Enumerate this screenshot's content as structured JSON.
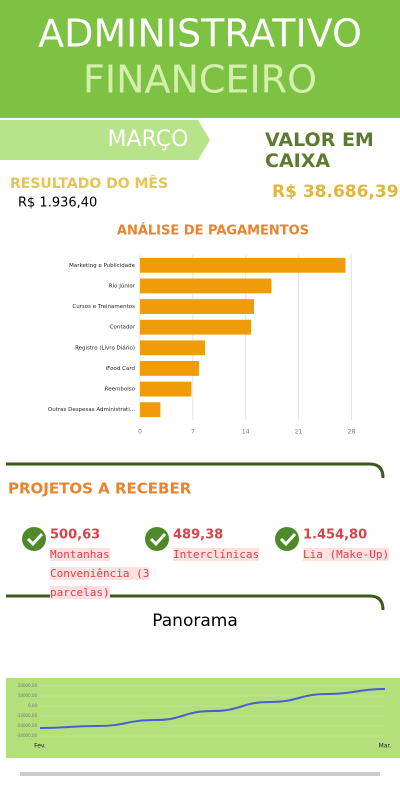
{
  "header": {
    "title": "ADMINISTRATIVO",
    "subtitle": "FINANCEIRO"
  },
  "month": "MARÇO",
  "cash": {
    "label": "VALOR EM CAIXA",
    "value": "R$ 38.686,39"
  },
  "result": {
    "label": "RESULTADO DO MÊS",
    "value": "R$ 1.936,40"
  },
  "receivables": {
    "title": "PROJETOS A RECEBER",
    "items": [
      {
        "value": "500,63",
        "name": "Montanhas Conveniência (3 parcelas)"
      },
      {
        "value": "489,38",
        "name": "Interclínicas"
      },
      {
        "value": "1.454,80",
        "name": "Lia (Make-Up)"
      }
    ]
  },
  "chart_data": [
    {
      "type": "hbar",
      "title": "ANÁLISE DE PAGAMENTOS",
      "color": "#f09c0a",
      "categories": [
        "Marketing e Publicidade",
        "Rio Júnior",
        "Cursos e Treinamentos",
        "Contador",
        "Registro (Livro Diário)",
        "iFood Card",
        "Reembolso",
        "Outras Despesas Administrati..."
      ],
      "values": [
        27.2,
        17.4,
        15.1,
        14.7,
        8.6,
        7.8,
        6.8,
        2.7
      ],
      "xlim": [
        0,
        28.6
      ],
      "xticks": [
        0,
        7,
        14,
        21,
        28
      ],
      "grid": true
    },
    {
      "type": "line",
      "title": "Panorama",
      "color": "#4a5fd0",
      "categories": [
        "Fev.",
        null,
        null,
        null,
        null,
        null,
        "Mar."
      ],
      "values": [
        -22000,
        -20000,
        -14000,
        -5000,
        4000,
        12000,
        17000
      ],
      "ylim": [
        -30000,
        20000
      ],
      "yticks": [
        {
          "value": -30000,
          "label": "-30000,00"
        },
        {
          "value": -20000,
          "label": "-20000,00"
        },
        {
          "value": -10000,
          "label": "-10000,00"
        },
        {
          "value": 0,
          "label": "0,00"
        },
        {
          "value": 10000,
          "label": "10000,00"
        },
        {
          "value": 20000,
          "label": "20000,00"
        }
      ],
      "grid": true
    }
  ]
}
